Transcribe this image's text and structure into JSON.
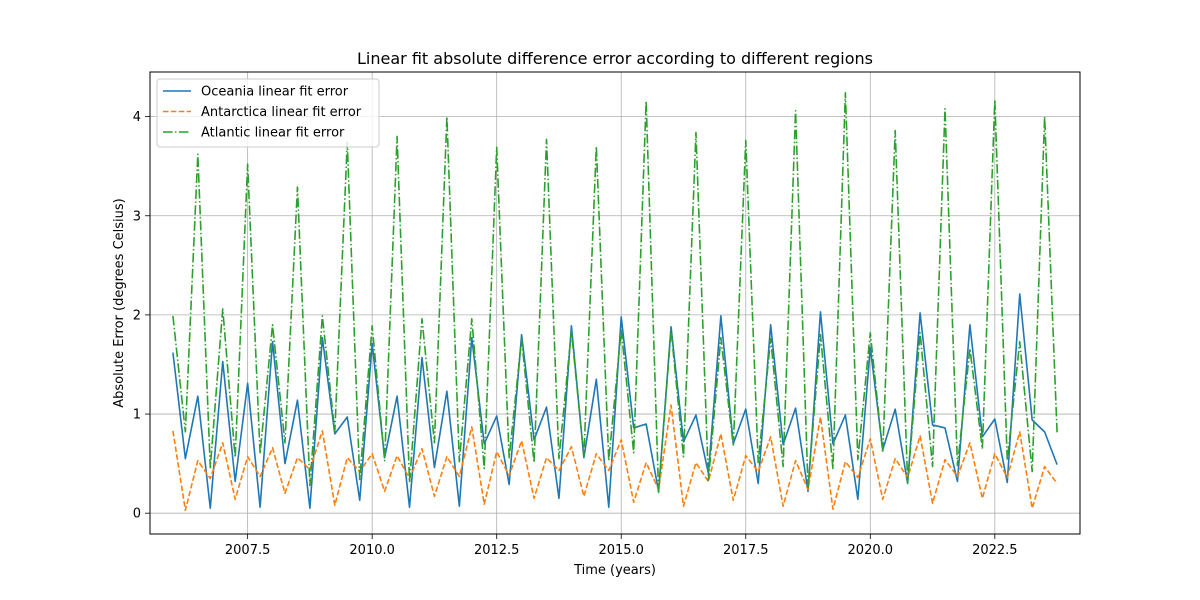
{
  "chart_data": {
    "type": "line",
    "title": "Linear fit absolute difference error according to different regions",
    "xlabel": "Time (years)",
    "ylabel": "Absolute Error (degrees Celsius)",
    "xlim": [
      2005.54,
      2024.21
    ],
    "ylim": [
      -0.21,
      4.45
    ],
    "xticks": [
      2007.5,
      2010.0,
      2012.5,
      2015.0,
      2017.5,
      2020.0,
      2022.5
    ],
    "xtick_labels": [
      "2007.5",
      "2010.0",
      "2012.5",
      "2015.0",
      "2017.5",
      "2020.0",
      "2022.5"
    ],
    "yticks": [
      0,
      1,
      2,
      3,
      4
    ],
    "ytick_labels": [
      "0",
      "1",
      "2",
      "3",
      "4"
    ],
    "grid": true,
    "legend_position": "top-left",
    "x": [
      2006.0,
      2006.25,
      2006.5,
      2006.75,
      2007.0,
      2007.25,
      2007.5,
      2007.75,
      2008.0,
      2008.25,
      2008.5,
      2008.75,
      2009.0,
      2009.25,
      2009.5,
      2009.75,
      2010.0,
      2010.25,
      2010.5,
      2010.75,
      2011.0,
      2011.25,
      2011.5,
      2011.75,
      2012.0,
      2012.25,
      2012.5,
      2012.75,
      2013.0,
      2013.25,
      2013.5,
      2013.75,
      2014.0,
      2014.25,
      2014.5,
      2014.75,
      2015.0,
      2015.25,
      2015.5,
      2015.75,
      2016.0,
      2016.25,
      2016.5,
      2016.75,
      2017.0,
      2017.25,
      2017.5,
      2017.75,
      2018.0,
      2018.25,
      2018.5,
      2018.75,
      2019.0,
      2019.25,
      2019.5,
      2019.75,
      2020.0,
      2020.25,
      2020.5,
      2020.75,
      2021.0,
      2021.25,
      2021.5,
      2021.75,
      2022.0,
      2022.25,
      2022.5,
      2022.75,
      2023.0,
      2023.25,
      2023.5,
      2023.75
    ],
    "series": [
      {
        "name": "Oceania linear fit error",
        "color": "#1f77b4",
        "dash": "solid",
        "values": [
          1.62,
          0.55,
          1.18,
          0.05,
          1.53,
          0.32,
          1.31,
          0.06,
          1.73,
          0.5,
          1.14,
          0.05,
          1.77,
          0.8,
          0.97,
          0.13,
          1.71,
          0.56,
          1.18,
          0.06,
          1.57,
          0.46,
          1.23,
          0.07,
          1.77,
          0.7,
          0.98,
          0.29,
          1.8,
          0.74,
          1.07,
          0.15,
          1.89,
          0.56,
          1.35,
          0.06,
          1.98,
          0.86,
          0.9,
          0.22,
          1.88,
          0.72,
          0.99,
          0.4,
          1.99,
          0.7,
          1.05,
          0.3,
          1.9,
          0.69,
          1.06,
          0.22,
          2.03,
          0.7,
          0.99,
          0.14,
          1.67,
          0.64,
          1.05,
          0.3,
          2.02,
          0.89,
          0.86,
          0.32,
          1.9,
          0.77,
          0.95,
          0.31,
          2.21,
          0.94,
          0.82,
          0.49
        ]
      },
      {
        "name": "Antarctica linear fit error",
        "color": "#ff7f0e",
        "dash": "dashed",
        "values": [
          0.83,
          0.03,
          0.53,
          0.35,
          0.71,
          0.14,
          0.57,
          0.37,
          0.66,
          0.2,
          0.56,
          0.44,
          0.83,
          0.08,
          0.56,
          0.42,
          0.6,
          0.22,
          0.58,
          0.35,
          0.65,
          0.17,
          0.57,
          0.37,
          0.87,
          0.09,
          0.62,
          0.38,
          0.73,
          0.15,
          0.56,
          0.43,
          0.67,
          0.17,
          0.6,
          0.43,
          0.74,
          0.11,
          0.51,
          0.24,
          1.09,
          0.07,
          0.51,
          0.32,
          0.8,
          0.13,
          0.58,
          0.42,
          0.77,
          0.07,
          0.53,
          0.24,
          0.97,
          0.04,
          0.52,
          0.36,
          0.75,
          0.14,
          0.55,
          0.36,
          0.78,
          0.1,
          0.54,
          0.37,
          0.71,
          0.15,
          0.6,
          0.36,
          0.82,
          0.05,
          0.47,
          0.3
        ]
      },
      {
        "name": "Atlantic linear fit error",
        "color": "#2ca02c",
        "dash": "dashdot",
        "values": [
          1.99,
          0.82,
          3.62,
          0.46,
          2.06,
          0.56,
          3.52,
          0.6,
          1.9,
          0.71,
          3.29,
          0.28,
          1.99,
          0.82,
          3.74,
          0.34,
          1.89,
          0.53,
          3.8,
          0.31,
          1.96,
          0.71,
          4.0,
          0.52,
          1.96,
          0.45,
          3.69,
          0.56,
          1.76,
          0.51,
          3.77,
          0.55,
          1.84,
          0.57,
          3.7,
          0.53,
          1.85,
          0.61,
          4.16,
          0.21,
          1.85,
          0.57,
          3.84,
          0.33,
          1.77,
          0.68,
          3.76,
          0.51,
          1.76,
          0.47,
          4.06,
          0.26,
          1.8,
          0.45,
          4.24,
          0.54,
          1.82,
          0.61,
          3.86,
          0.31,
          1.82,
          0.47,
          4.08,
          0.48,
          1.66,
          0.65,
          4.17,
          0.53,
          1.73,
          0.42,
          4.0,
          0.81
        ]
      }
    ]
  }
}
